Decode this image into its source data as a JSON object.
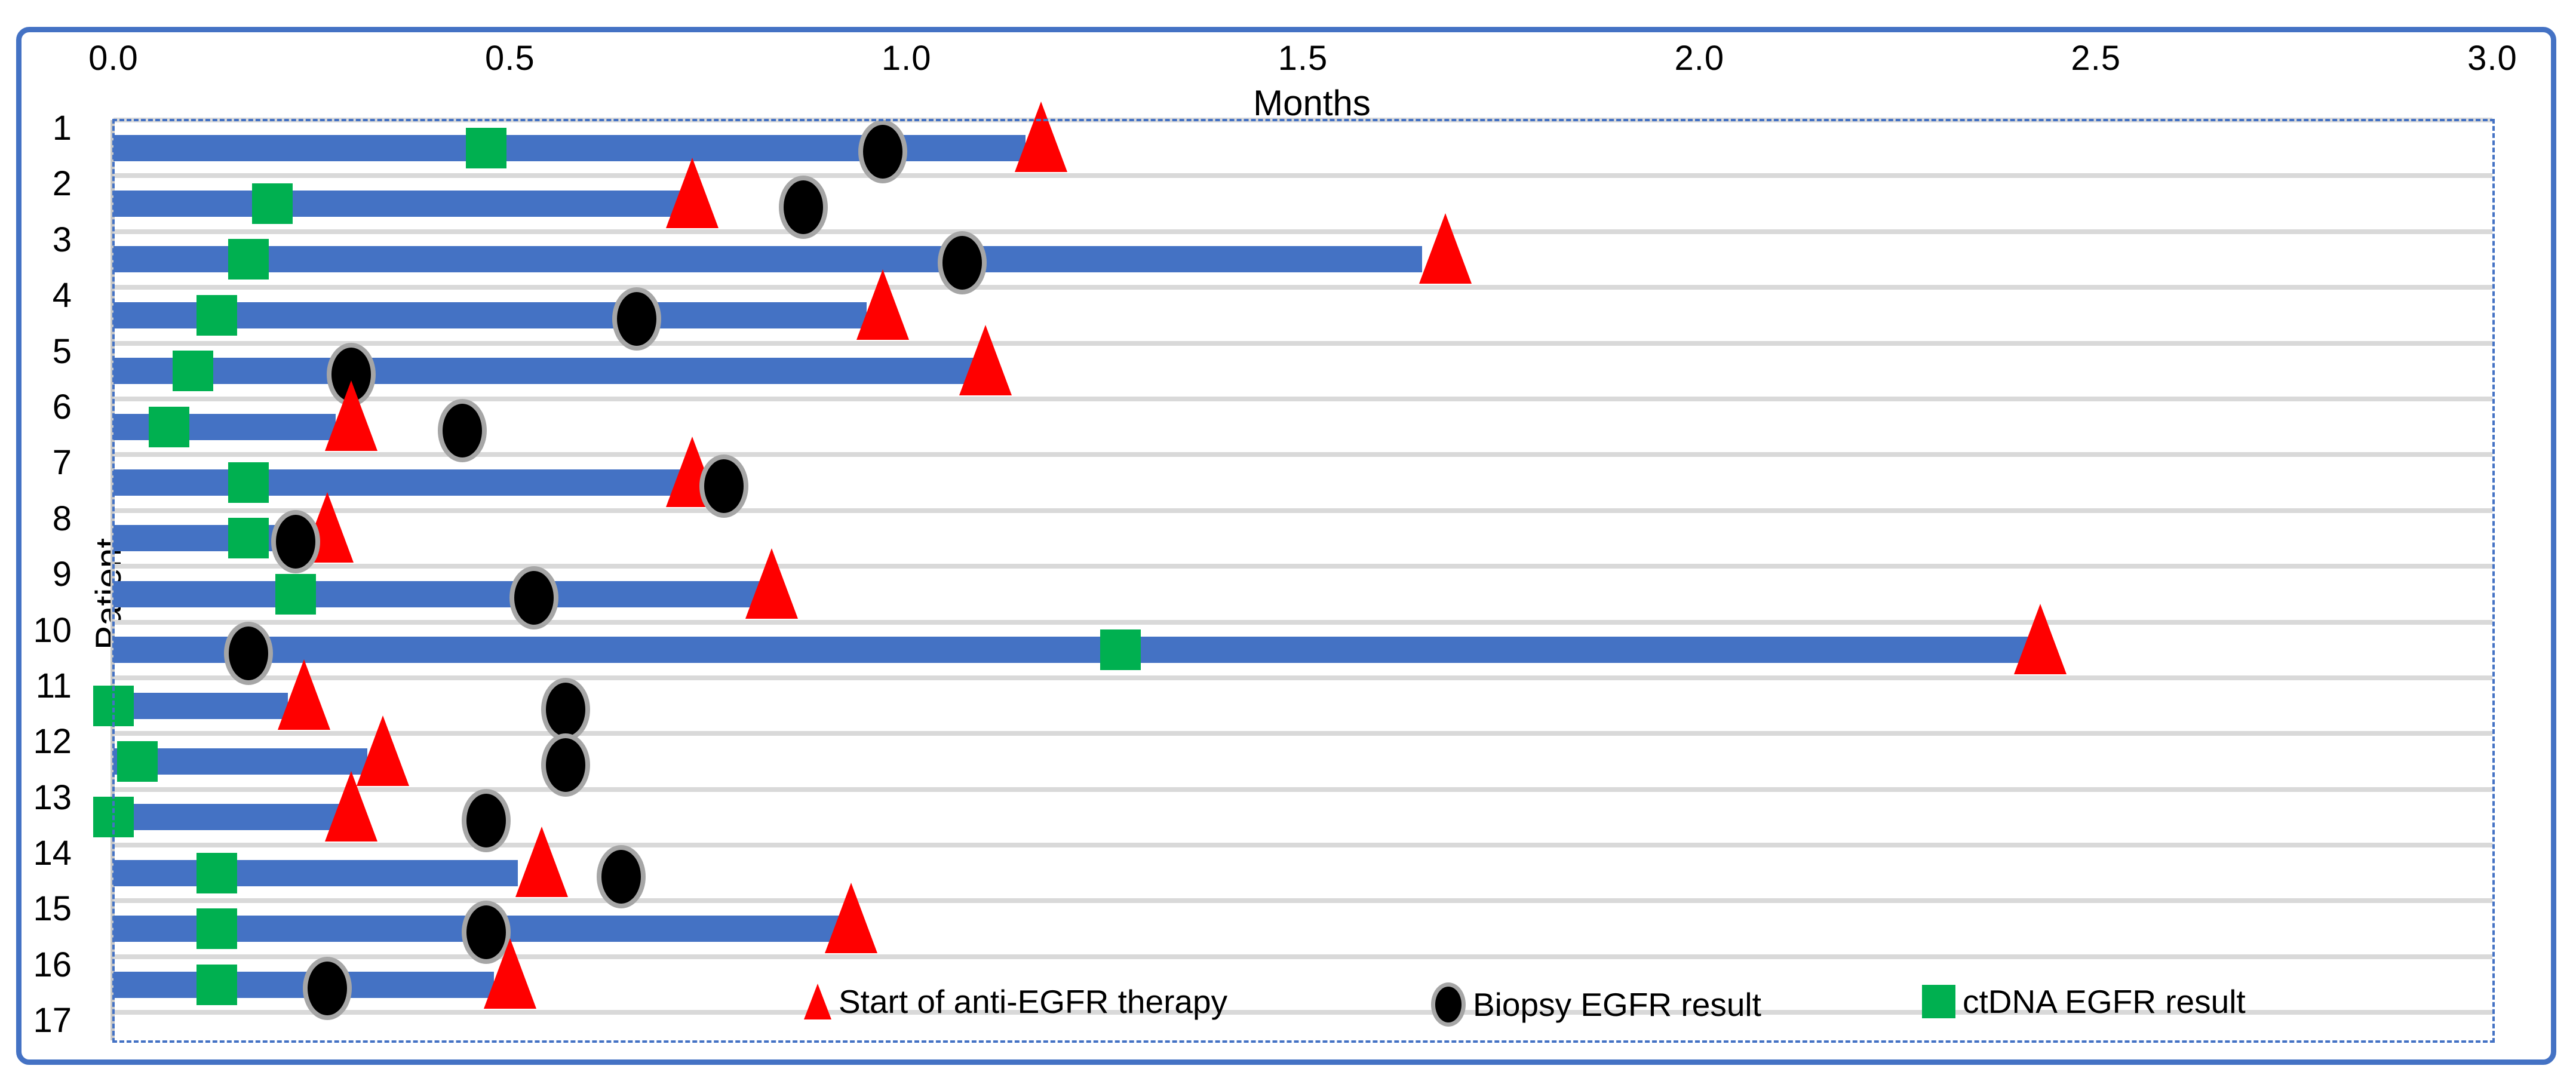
{
  "chart_data": {
    "type": "bar",
    "title": "",
    "xlabel": "Months",
    "ylabel": "Patient",
    "xlim": [
      0.0,
      3.0
    ],
    "x_ticks": [
      "0.0",
      "0.5",
      "1.0",
      "1.5",
      "2.0",
      "2.5",
      "3.0"
    ],
    "x_tick_values": [
      0.0,
      0.5,
      1.0,
      1.5,
      2.0,
      2.5,
      3.0
    ],
    "y_tick_labels": [
      "1",
      "2",
      "3",
      "4",
      "5",
      "6",
      "7",
      "8",
      "9",
      "10",
      "11",
      "12",
      "13",
      "14",
      "15",
      "16",
      "17"
    ],
    "grid": "horizontal row separator lines, light gray",
    "legend_position": "inside plot, bottom right",
    "categories": [
      1,
      2,
      3,
      4,
      5,
      6,
      7,
      8,
      9,
      10,
      11,
      12,
      13,
      14,
      15,
      16
    ],
    "bar_series": {
      "description": "blue timeline bar per patient (months)",
      "color": "#4472C4",
      "values": [
        1.15,
        0.72,
        1.65,
        0.95,
        1.09,
        0.28,
        0.72,
        0.25,
        0.82,
        2.42,
        0.22,
        0.32,
        0.29,
        0.51,
        0.92,
        0.48
      ]
    },
    "series": [
      {
        "name": "Start of anti-EGFR therapy",
        "marker": "triangle",
        "color": "#FF0000",
        "values": [
          1.17,
          0.73,
          1.68,
          0.97,
          1.1,
          0.3,
          0.73,
          0.27,
          0.83,
          2.43,
          0.24,
          0.34,
          0.3,
          0.54,
          0.93,
          0.5
        ]
      },
      {
        "name": "Biopsy EGFR result",
        "marker": "circle",
        "color": "#000000",
        "values": [
          0.97,
          0.87,
          1.07,
          0.66,
          0.3,
          0.44,
          0.77,
          0.23,
          0.53,
          0.17,
          0.57,
          0.57,
          0.47,
          0.64,
          0.47,
          0.27
        ]
      },
      {
        "name": "ctDNA EGFR result",
        "marker": "square",
        "color": "#00B050",
        "values": [
          0.47,
          0.2,
          0.17,
          0.13,
          0.1,
          0.07,
          0.17,
          0.17,
          0.23,
          1.27,
          0.0,
          0.03,
          0.0,
          0.13,
          0.13,
          0.13
        ]
      }
    ]
  },
  "colors": {
    "bar_blue": "#4472C4",
    "marker_green": "#00B050",
    "marker_red": "#FF0000",
    "marker_black": "#000000",
    "marker_ring_gray": "#A6A6A6",
    "gridline_gray": "#D9D9D9",
    "chart_border_blue": "#4472C4"
  }
}
